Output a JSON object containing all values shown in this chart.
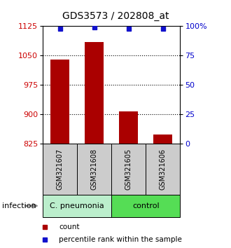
{
  "title": "GDS3573 / 202808_at",
  "samples": [
    "GSM321607",
    "GSM321608",
    "GSM321605",
    "GSM321606"
  ],
  "counts": [
    1040,
    1085,
    908,
    848
  ],
  "percentiles": [
    98,
    99,
    98,
    98
  ],
  "ylim_left": [
    825,
    1125
  ],
  "ylim_right": [
    0,
    100
  ],
  "yticks_left": [
    825,
    900,
    975,
    1050,
    1125
  ],
  "yticks_right": [
    0,
    25,
    50,
    75,
    100
  ],
  "ytick_labels_right": [
    "0",
    "25",
    "50",
    "75",
    "100%"
  ],
  "bar_color": "#aa0000",
  "dot_color": "#1111cc",
  "groups": [
    {
      "label": "C. pneumonia",
      "color": "#bbeecc"
    },
    {
      "label": "control",
      "color": "#55dd55"
    }
  ],
  "group_label": "infection",
  "legend_count_label": "count",
  "legend_pct_label": "percentile rank within the sample",
  "bar_width": 0.55,
  "sample_box_color": "#cccccc",
  "baseline": 825,
  "grid_yticks": [
    900,
    975,
    1050
  ],
  "title_fontsize": 10,
  "tick_fontsize": 8,
  "sample_fontsize": 7,
  "group_fontsize": 8,
  "legend_fontsize": 7.5
}
